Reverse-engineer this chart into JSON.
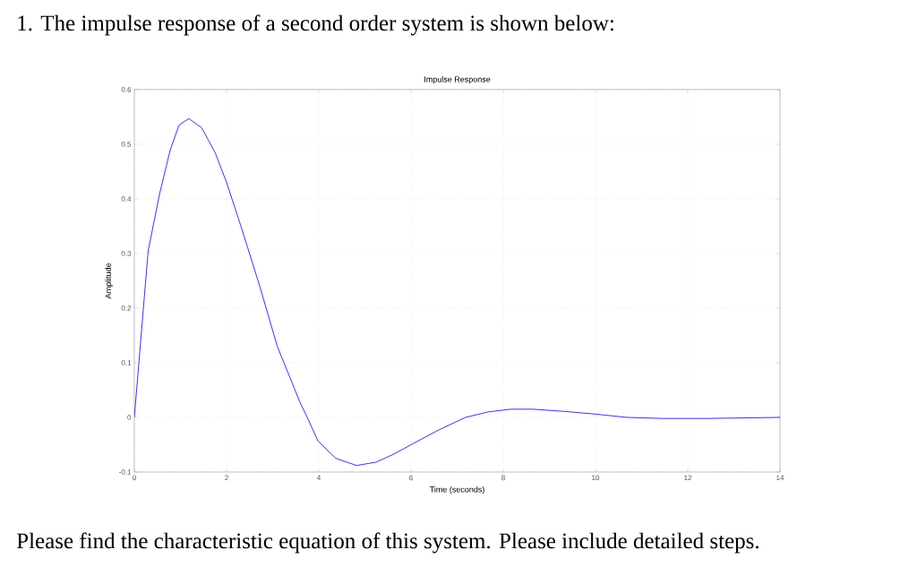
{
  "chart_data": {
    "type": "line",
    "title": "Impulse Response",
    "xlabel": "Time (seconds)",
    "ylabel": "Amplitude",
    "annotations": [
      "1. The impulse response of a second order system is shown below:",
      "Please find the characteristic equation of this system. Please include detailed steps."
    ],
    "x": [
      0,
      0.3,
      0.55,
      0.78,
      0.97,
      1.18,
      1.46,
      1.75,
      2.0,
      2.33,
      2.72,
      3.1,
      3.6,
      3.75,
      3.98,
      4.37,
      4.82,
      5.24,
      5.63,
      6.0,
      6.6,
      7.18,
      7.67,
      8.16,
      8.64,
      9.32,
      10.0,
      10.68,
      11.46,
      12.4,
      14
    ],
    "series": [
      {
        "color": "#0000ff",
        "values": [
          0,
          0.305,
          0.41,
          0.49,
          0.535,
          0.547,
          0.53,
          0.485,
          0.43,
          0.345,
          0.24,
          0.13,
          0.026,
          0,
          -0.043,
          -0.075,
          -0.088,
          -0.082,
          -0.067,
          -0.05,
          -0.023,
          0,
          0.01,
          0.015,
          0.015,
          0.011,
          0.006,
          0,
          -0.002,
          -0.002,
          0
        ]
      }
    ],
    "xlim": [
      0,
      14
    ],
    "ylim": [
      -0.1,
      0.6
    ],
    "xticks": [
      0,
      2,
      4,
      6,
      8,
      10,
      12,
      14
    ],
    "yticks": [
      -0.1,
      0,
      0.1,
      0.2,
      0.3,
      0.4,
      0.5,
      0.6
    ],
    "grid": true
  }
}
